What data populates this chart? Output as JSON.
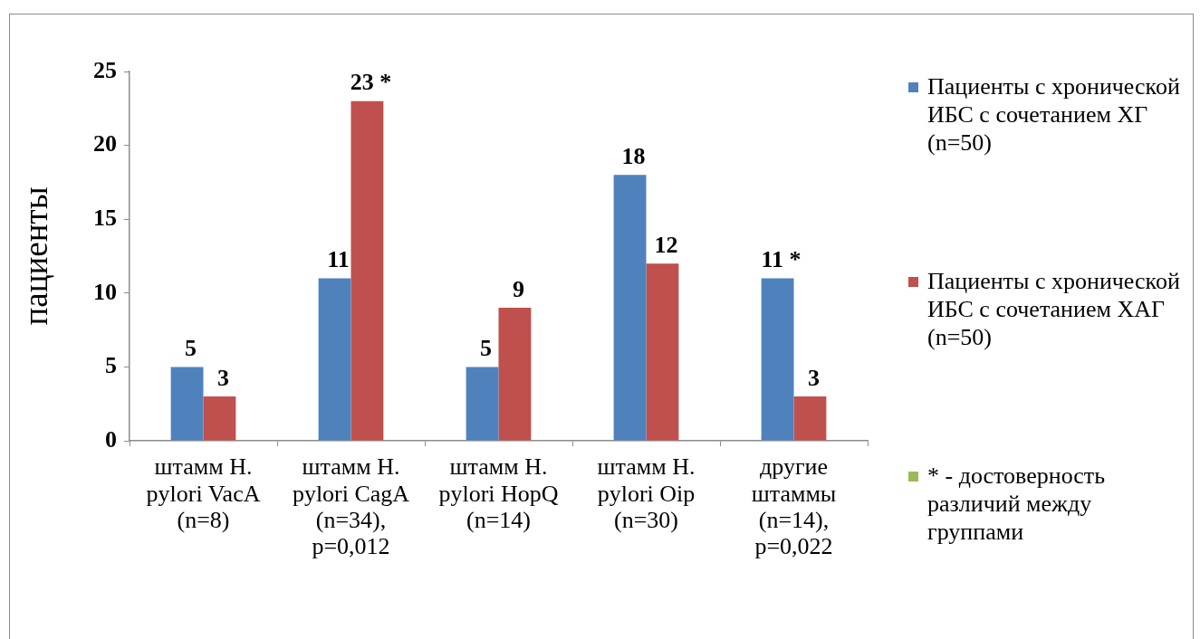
{
  "chart_data": {
    "type": "bar",
    "ylabel": "пациенты",
    "categories": [
      "штамм H. pylori VacA (n=8)",
      "штамм H. pylori CagA (n=34), p=0,012",
      "штамм H. pylori HopQ (n=14)",
      "штамм H. pylori Oip (n=30)",
      "другие штаммы (n=14), p=0,022"
    ],
    "series": [
      {
        "name": "Пациенты с хронической ИБС с сочетанием ХГ (n=50)",
        "color": "#4f81bd",
        "values": [
          5,
          11,
          5,
          18,
          11
        ],
        "value_labels": [
          "5",
          "11",
          "5",
          "18",
          "11 *"
        ]
      },
      {
        "name": "Пациенты с хронической ИБС с сочетанием ХАГ (n=50)",
        "color": "#c0504d",
        "values": [
          3,
          23,
          9,
          12,
          3
        ],
        "value_labels": [
          "3",
          "23 *",
          "9",
          "12",
          "3"
        ]
      },
      {
        "name": "* - достоверность различий между группами",
        "color": "#9bbb59",
        "values": [
          null,
          null,
          null,
          null,
          null
        ]
      }
    ],
    "ylim": [
      0,
      25
    ],
    "yticks": [
      0,
      5,
      10,
      15,
      20,
      25
    ],
    "grid": false,
    "legend": "right"
  }
}
